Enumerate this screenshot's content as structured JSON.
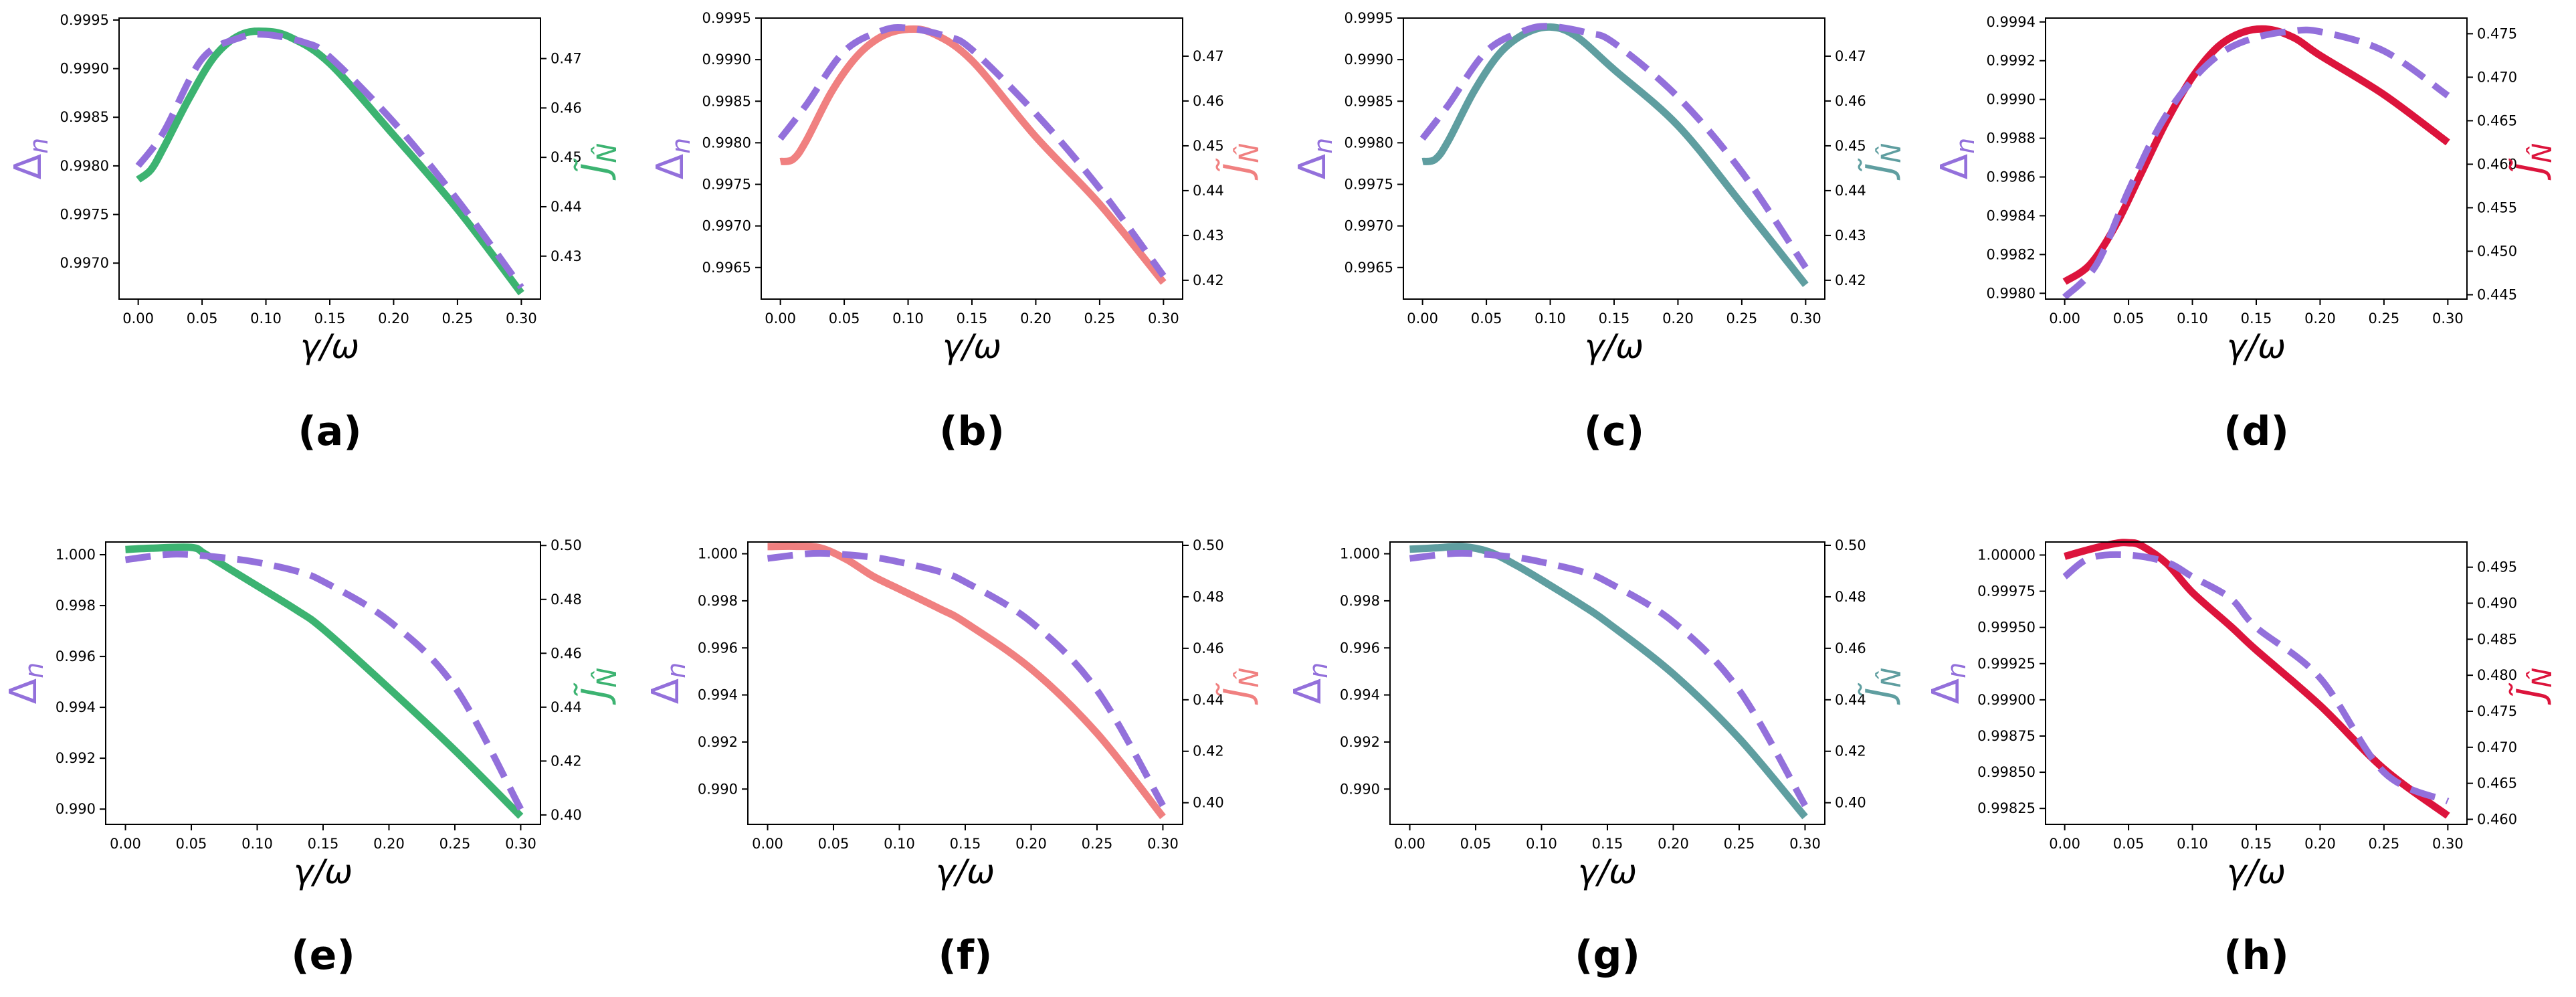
{
  "figure": {
    "x_axis_label": "γ/ω",
    "left_axis_label": "Δn",
    "right_axis_label": "J̃N̂",
    "dashed_series_color": "#9370DB"
  },
  "chart_data": [
    {
      "type": "line",
      "panel_label": "(a)",
      "solid_color": "#3CB371",
      "xlim": [
        -0.015,
        0.315
      ],
      "ylim_left": [
        0.99663,
        0.99952
      ],
      "ylim_right": [
        0.4213,
        0.4782
      ],
      "x_ticks": [
        0,
        0.05,
        0.1,
        0.15,
        0.2,
        0.25,
        0.3
      ],
      "x_tick_labels": [
        "0.00",
        "0.05",
        "0.10",
        "0.15",
        "0.20",
        "0.25",
        "0.30"
      ],
      "left_ticks": [
        0.997,
        0.9975,
        0.998,
        0.9985,
        0.999,
        0.9995
      ],
      "left_tick_labels": [
        "0.9970",
        "0.9975",
        "0.9980",
        "0.9985",
        "0.9990",
        "0.9995"
      ],
      "right_ticks": [
        0.43,
        0.44,
        0.45,
        0.46,
        0.47
      ],
      "right_tick_labels": [
        "0.43",
        "0.44",
        "0.45",
        "0.46",
        "0.47"
      ],
      "series": [
        {
          "axis": "left",
          "style": "dashed",
          "x": [
            0,
            0.02,
            0.05,
            0.08,
            0.1,
            0.13,
            0.15,
            0.2,
            0.25,
            0.3
          ],
          "y": [
            0.998,
            0.99835,
            0.9991,
            0.99932,
            0.99935,
            0.99927,
            0.99912,
            0.99845,
            0.99765,
            0.99675
          ]
        },
        {
          "axis": "right",
          "style": "solid",
          "x": [
            0,
            0.01,
            0.02,
            0.04,
            0.06,
            0.08,
            0.1,
            0.12,
            0.15,
            0.2,
            0.25,
            0.3
          ],
          "y": [
            0.4455,
            0.4475,
            0.452,
            0.462,
            0.4705,
            0.4748,
            0.4755,
            0.4742,
            0.469,
            0.4545,
            0.4395,
            0.4225
          ]
        }
      ]
    },
    {
      "type": "line",
      "panel_label": "(b)",
      "solid_color": "#F08080",
      "xlim": [
        -0.015,
        0.315
      ],
      "ylim_left": [
        0.99612,
        0.9995
      ],
      "ylim_right": [
        0.4158,
        0.4785
      ],
      "x_ticks": [
        0,
        0.05,
        0.1,
        0.15,
        0.2,
        0.25,
        0.3
      ],
      "x_tick_labels": [
        "0.00",
        "0.05",
        "0.10",
        "0.15",
        "0.20",
        "0.25",
        "0.30"
      ],
      "left_ticks": [
        0.9965,
        0.997,
        0.9975,
        0.998,
        0.9985,
        0.999,
        0.9995
      ],
      "left_tick_labels": [
        "0.9965",
        "0.9970",
        "0.9975",
        "0.9980",
        "0.9985",
        "0.9990",
        "0.9995"
      ],
      "right_ticks": [
        0.42,
        0.43,
        0.44,
        0.45,
        0.46,
        0.47
      ],
      "right_tick_labels": [
        "0.42",
        "0.43",
        "0.44",
        "0.45",
        "0.46",
        "0.47"
      ],
      "series": [
        {
          "axis": "left",
          "style": "dashed",
          "x": [
            0,
            0.02,
            0.05,
            0.08,
            0.1,
            0.13,
            0.15,
            0.2,
            0.25,
            0.3
          ],
          "y": [
            0.99805,
            0.99845,
            0.9991,
            0.99935,
            0.99938,
            0.99928,
            0.99912,
            0.99835,
            0.99745,
            0.9964
          ]
        },
        {
          "axis": "right",
          "style": "solid",
          "x": [
            0,
            0.01,
            0.02,
            0.04,
            0.06,
            0.08,
            0.1,
            0.12,
            0.15,
            0.2,
            0.25,
            0.3
          ],
          "y": [
            0.4465,
            0.447,
            0.451,
            0.462,
            0.47,
            0.4745,
            0.476,
            0.475,
            0.469,
            0.452,
            0.437,
            0.4195
          ]
        }
      ]
    },
    {
      "type": "line",
      "panel_label": "(c)",
      "solid_color": "#5F9EA0",
      "xlim": [
        -0.015,
        0.315
      ],
      "ylim_left": [
        0.99612,
        0.9995
      ],
      "ylim_right": [
        0.4158,
        0.4785
      ],
      "x_ticks": [
        0,
        0.05,
        0.1,
        0.15,
        0.2,
        0.25,
        0.3
      ],
      "x_tick_labels": [
        "0.00",
        "0.05",
        "0.10",
        "0.15",
        "0.20",
        "0.25",
        "0.30"
      ],
      "left_ticks": [
        0.9965,
        0.997,
        0.9975,
        0.998,
        0.9985,
        0.999,
        0.9995
      ],
      "left_tick_labels": [
        "0.9965",
        "0.9970",
        "0.9975",
        "0.9980",
        "0.9985",
        "0.9990",
        "0.9995"
      ],
      "right_ticks": [
        0.42,
        0.43,
        0.44,
        0.45,
        0.46,
        0.47
      ],
      "right_tick_labels": [
        "0.42",
        "0.43",
        "0.44",
        "0.45",
        "0.46",
        "0.47"
      ],
      "series": [
        {
          "axis": "left",
          "style": "dashed",
          "x": [
            0,
            0.02,
            0.05,
            0.08,
            0.1,
            0.13,
            0.15,
            0.2,
            0.25,
            0.3
          ],
          "y": [
            0.99805,
            0.99845,
            0.9991,
            0.99935,
            0.9994,
            0.99932,
            0.9992,
            0.99855,
            0.99765,
            0.9965
          ]
        },
        {
          "axis": "right",
          "style": "solid",
          "x": [
            0,
            0.01,
            0.02,
            0.04,
            0.06,
            0.08,
            0.1,
            0.12,
            0.15,
            0.2,
            0.25,
            0.3
          ],
          "y": [
            0.4465,
            0.447,
            0.451,
            0.462,
            0.4705,
            0.475,
            0.4765,
            0.4745,
            0.467,
            0.4545,
            0.437,
            0.419
          ]
        }
      ]
    },
    {
      "type": "line",
      "panel_label": "(d)",
      "solid_color": "#DC143C",
      "xlim": [
        -0.015,
        0.315
      ],
      "ylim_left": [
        0.99797,
        0.99942
      ],
      "ylim_right": [
        0.4445,
        0.4768
      ],
      "x_ticks": [
        0,
        0.05,
        0.1,
        0.15,
        0.2,
        0.25,
        0.3
      ],
      "x_tick_labels": [
        "0.00",
        "0.05",
        "0.10",
        "0.15",
        "0.20",
        "0.25",
        "0.30"
      ],
      "left_ticks": [
        0.998,
        0.9982,
        0.9984,
        0.9986,
        0.9988,
        0.999,
        0.9992,
        0.9994
      ],
      "left_tick_labels": [
        "0.9980",
        "0.9982",
        "0.9984",
        "0.9986",
        "0.9988",
        "0.9990",
        "0.9992",
        "0.9994"
      ],
      "right_ticks": [
        0.445,
        0.45,
        0.455,
        0.46,
        0.465,
        0.47,
        0.475
      ],
      "right_tick_labels": [
        "0.445",
        "0.450",
        "0.455",
        "0.460",
        "0.465",
        "0.470",
        "0.475"
      ],
      "series": [
        {
          "axis": "left",
          "style": "dashed",
          "x": [
            0,
            0.025,
            0.05,
            0.075,
            0.1,
            0.125,
            0.15,
            0.175,
            0.2,
            0.25,
            0.3
          ],
          "y": [
            0.99798,
            0.99815,
            0.99853,
            0.99887,
            0.9991,
            0.99925,
            0.99932,
            0.99935,
            0.99935,
            0.99925,
            0.99902
          ]
        },
        {
          "axis": "right",
          "style": "solid",
          "x": [
            0,
            0.02,
            0.04,
            0.06,
            0.08,
            0.1,
            0.12,
            0.14,
            0.16,
            0.18,
            0.2,
            0.25,
            0.3
          ],
          "y": [
            0.4465,
            0.4485,
            0.453,
            0.459,
            0.465,
            0.47,
            0.4735,
            0.4752,
            0.4755,
            0.4745,
            0.4725,
            0.468,
            0.4625
          ]
        }
      ]
    },
    {
      "type": "line",
      "panel_label": "(e)",
      "solid_color": "#3CB371",
      "xlim": [
        -0.015,
        0.315
      ],
      "ylim_left": [
        0.9894,
        1.0005
      ],
      "ylim_right": [
        0.3965,
        0.5013
      ],
      "x_ticks": [
        0,
        0.05,
        0.1,
        0.15,
        0.2,
        0.25,
        0.3
      ],
      "x_tick_labels": [
        "0.00",
        "0.05",
        "0.10",
        "0.15",
        "0.20",
        "0.25",
        "0.30"
      ],
      "left_ticks": [
        0.99,
        0.992,
        0.994,
        0.996,
        0.998,
        1.0
      ],
      "left_tick_labels": [
        "0.990",
        "0.992",
        "0.994",
        "0.996",
        "0.998",
        "1.000"
      ],
      "right_ticks": [
        0.4,
        0.42,
        0.44,
        0.46,
        0.48,
        0.5
      ],
      "right_tick_labels": [
        "0.40",
        "0.42",
        "0.44",
        "0.46",
        "0.48",
        "0.50"
      ],
      "series": [
        {
          "axis": "left",
          "style": "dashed",
          "x": [
            0,
            0.03,
            0.05,
            0.08,
            0.1,
            0.13,
            0.15,
            0.2,
            0.25,
            0.3
          ],
          "y": [
            0.9998,
            1.0,
            1.0,
            0.99985,
            0.9997,
            0.99935,
            0.99895,
            0.9974,
            0.9948,
            0.99
          ]
        },
        {
          "axis": "right",
          "style": "solid",
          "x": [
            0,
            0.02,
            0.05,
            0.06,
            0.08,
            0.1,
            0.13,
            0.15,
            0.2,
            0.25,
            0.3
          ],
          "y": [
            0.4985,
            0.499,
            0.4993,
            0.497,
            0.491,
            0.485,
            0.476,
            0.469,
            0.447,
            0.424,
            0.3995
          ]
        }
      ]
    },
    {
      "type": "line",
      "panel_label": "(f)",
      "solid_color": "#F08080",
      "xlim": [
        -0.015,
        0.315
      ],
      "ylim_left": [
        0.9885,
        1.0005
      ],
      "ylim_right": [
        0.3916,
        0.5013
      ],
      "x_ticks": [
        0,
        0.05,
        0.1,
        0.15,
        0.2,
        0.25,
        0.3
      ],
      "x_tick_labels": [
        "0.00",
        "0.05",
        "0.10",
        "0.15",
        "0.20",
        "0.25",
        "0.30"
      ],
      "left_ticks": [
        0.99,
        0.992,
        0.994,
        0.996,
        0.998,
        1.0
      ],
      "left_tick_labels": [
        "0.990",
        "0.992",
        "0.994",
        "0.996",
        "0.998",
        "1.000"
      ],
      "right_ticks": [
        0.4,
        0.42,
        0.44,
        0.46,
        0.48,
        0.5
      ],
      "right_tick_labels": [
        "0.40",
        "0.42",
        "0.44",
        "0.46",
        "0.48",
        "0.50"
      ],
      "series": [
        {
          "axis": "left",
          "style": "dashed",
          "x": [
            0,
            0.03,
            0.05,
            0.08,
            0.1,
            0.13,
            0.15,
            0.2,
            0.25,
            0.3
          ],
          "y": [
            0.9998,
            1.0,
            1.0,
            0.99985,
            0.99965,
            0.99925,
            0.9988,
            0.9971,
            0.9942,
            0.9893
          ]
        },
        {
          "axis": "right",
          "style": "solid",
          "x": [
            0,
            0.02,
            0.04,
            0.06,
            0.08,
            0.1,
            0.13,
            0.15,
            0.2,
            0.25,
            0.3
          ],
          "y": [
            0.4995,
            0.4996,
            0.499,
            0.4945,
            0.488,
            0.483,
            0.4755,
            0.47,
            0.452,
            0.427,
            0.3945
          ]
        }
      ]
    },
    {
      "type": "line",
      "panel_label": "(g)",
      "solid_color": "#5F9EA0",
      "xlim": [
        -0.015,
        0.315
      ],
      "ylim_left": [
        0.9885,
        1.0005
      ],
      "ylim_right": [
        0.3916,
        0.5013
      ],
      "x_ticks": [
        0,
        0.05,
        0.1,
        0.15,
        0.2,
        0.25,
        0.3
      ],
      "x_tick_labels": [
        "0.00",
        "0.05",
        "0.10",
        "0.15",
        "0.20",
        "0.25",
        "0.30"
      ],
      "left_ticks": [
        0.99,
        0.992,
        0.994,
        0.996,
        0.998,
        1.0
      ],
      "left_tick_labels": [
        "0.990",
        "0.992",
        "0.994",
        "0.996",
        "0.998",
        "1.000"
      ],
      "right_ticks": [
        0.4,
        0.42,
        0.44,
        0.46,
        0.48,
        0.5
      ],
      "right_tick_labels": [
        "0.40",
        "0.42",
        "0.44",
        "0.46",
        "0.48",
        "0.50"
      ],
      "series": [
        {
          "axis": "left",
          "style": "dashed",
          "x": [
            0,
            0.03,
            0.05,
            0.08,
            0.1,
            0.13,
            0.15,
            0.2,
            0.25,
            0.3
          ],
          "y": [
            0.9998,
            1.0,
            1.0,
            0.99985,
            0.99965,
            0.99925,
            0.9988,
            0.9971,
            0.9942,
            0.9893
          ]
        },
        {
          "axis": "right",
          "style": "solid",
          "x": [
            0,
            0.02,
            0.04,
            0.06,
            0.08,
            0.1,
            0.13,
            0.15,
            0.2,
            0.25,
            0.3
          ],
          "y": [
            0.4985,
            0.499,
            0.4995,
            0.4975,
            0.4925,
            0.4865,
            0.477,
            0.47,
            0.45,
            0.425,
            0.3945
          ]
        }
      ]
    },
    {
      "type": "line",
      "panel_label": "(h)",
      "solid_color": "#DC143C",
      "xlim": [
        -0.015,
        0.315
      ],
      "ylim_left": [
        0.99814,
        1.00009
      ],
      "ylim_right": [
        0.4593,
        0.4985
      ],
      "x_ticks": [
        0,
        0.05,
        0.1,
        0.15,
        0.2,
        0.25,
        0.3
      ],
      "x_tick_labels": [
        "0.00",
        "0.05",
        "0.10",
        "0.15",
        "0.20",
        "0.25",
        "0.30"
      ],
      "left_ticks": [
        0.99825,
        0.9985,
        0.99875,
        0.999,
        0.99925,
        0.9995,
        0.99975,
        1.0
      ],
      "left_tick_labels": [
        "0.99825",
        "0.99850",
        "0.99875",
        "0.99900",
        "0.99925",
        "0.99950",
        "0.99975",
        "1.00000"
      ],
      "right_ticks": [
        0.46,
        0.465,
        0.47,
        0.475,
        0.48,
        0.485,
        0.49,
        0.495
      ],
      "right_tick_labels": [
        "0.460",
        "0.465",
        "0.470",
        "0.475",
        "0.480",
        "0.485",
        "0.490",
        "0.495"
      ],
      "series": [
        {
          "axis": "left",
          "style": "dashed",
          "x": [
            0,
            0.02,
            0.05,
            0.08,
            0.1,
            0.13,
            0.15,
            0.2,
            0.25,
            0.3
          ],
          "y": [
            0.99985,
            0.99998,
            1.0,
            0.99995,
            0.99985,
            0.9997,
            0.9995,
            0.99915,
            0.9985,
            0.9983
          ]
        },
        {
          "axis": "right",
          "style": "solid",
          "x": [
            0,
            0.02,
            0.04,
            0.05,
            0.06,
            0.08,
            0.1,
            0.13,
            0.15,
            0.2,
            0.25,
            0.3
          ],
          "y": [
            0.4965,
            0.4975,
            0.4983,
            0.4984,
            0.498,
            0.4955,
            0.4915,
            0.4868,
            0.4835,
            0.4758,
            0.467,
            0.4605
          ]
        }
      ]
    }
  ]
}
